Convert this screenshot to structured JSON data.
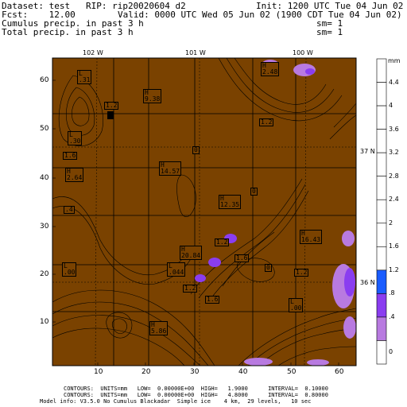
{
  "header": {
    "dataset_line": "Dataset: test   RIP: rip20020604 d2",
    "init_line": "Init: 1200 UTC Tue 04 Jun 02",
    "fcst_line": "Fcst:    12.00",
    "valid_line": "Valid: 0000 UTC Wed 05 Jun 02 (1900 CDT Tue 04 Jun 02)",
    "field1": "Cumulus precip. in past 3 h",
    "field1_sm": "sm= 1",
    "field2": "Total precip. in past 3 h",
    "field2_sm": "sm= 1"
  },
  "axes": {
    "x_ticks": [
      "10",
      "20",
      "30",
      "40",
      "50",
      "60"
    ],
    "y_ticks": [
      "10",
      "20",
      "30",
      "40",
      "50",
      "60"
    ],
    "lon_labels": [
      "102 W",
      "101 W",
      "100 W"
    ],
    "lat_labels": [
      "37 N",
      "36 N"
    ]
  },
  "colorbar": {
    "unit": "mm",
    "labels": [
      "4.4",
      "4",
      "3.6",
      "3.2",
      "2.8",
      "2.4",
      "2",
      "1.6",
      "1.2",
      ".8",
      ".4",
      "0"
    ],
    "colors": [
      "#ffffff",
      "#ffffff",
      "#ffffff",
      "#ffffff",
      "#ffffff",
      "#ffffff",
      "#ffffff",
      "#ffffff",
      "#ffffff",
      "#1a5cff",
      "#8a3df0",
      "#b87ae0",
      "#ffffff"
    ]
  },
  "map": {
    "background_color": "#7a4200",
    "labels": [
      {
        "text": "H\n9.38"
      },
      {
        "text": "L\n.31"
      },
      {
        "text": "L\n.30"
      },
      {
        "text": "H\n2.64"
      },
      {
        "text": "H\n14.57"
      },
      {
        "text": "H\n12.35"
      },
      {
        "text": "H\n16.43"
      },
      {
        "text": "H\n20.84"
      },
      {
        "text": "L\n.044"
      },
      {
        "text": "L\n.00"
      },
      {
        "text": "L\n.00"
      },
      {
        "text": "H\n5.86"
      },
      {
        "text": "H\n2.48"
      },
      {
        "text": "1.2"
      },
      {
        "text": "1.6"
      },
      {
        "text": "0"
      },
      {
        "text": ".4"
      },
      {
        "text": "1.2"
      },
      {
        "text": "1.6"
      },
      {
        "text": "1.2"
      },
      {
        "text": "0"
      },
      {
        "text": "1.2"
      },
      {
        "text": "1.6"
      },
      {
        "text": "0"
      },
      {
        "text": "1.2"
      }
    ]
  },
  "footer": {
    "line1": "CONTOURS:  UNITS=mm   LOW=  0.00000E+00  HIGH=   1.9000      INTERVAL=  0.10000",
    "line2": "CONTOURS:  UNITS=mm   LOW=  0.00000E+00  HIGH=   4.8000      INTERVAL=  0.80000",
    "line3": "Model info: V3.5.0 No Cumulus Blackadar  Simple ice    4 km,  29 levels,   10 sec"
  }
}
